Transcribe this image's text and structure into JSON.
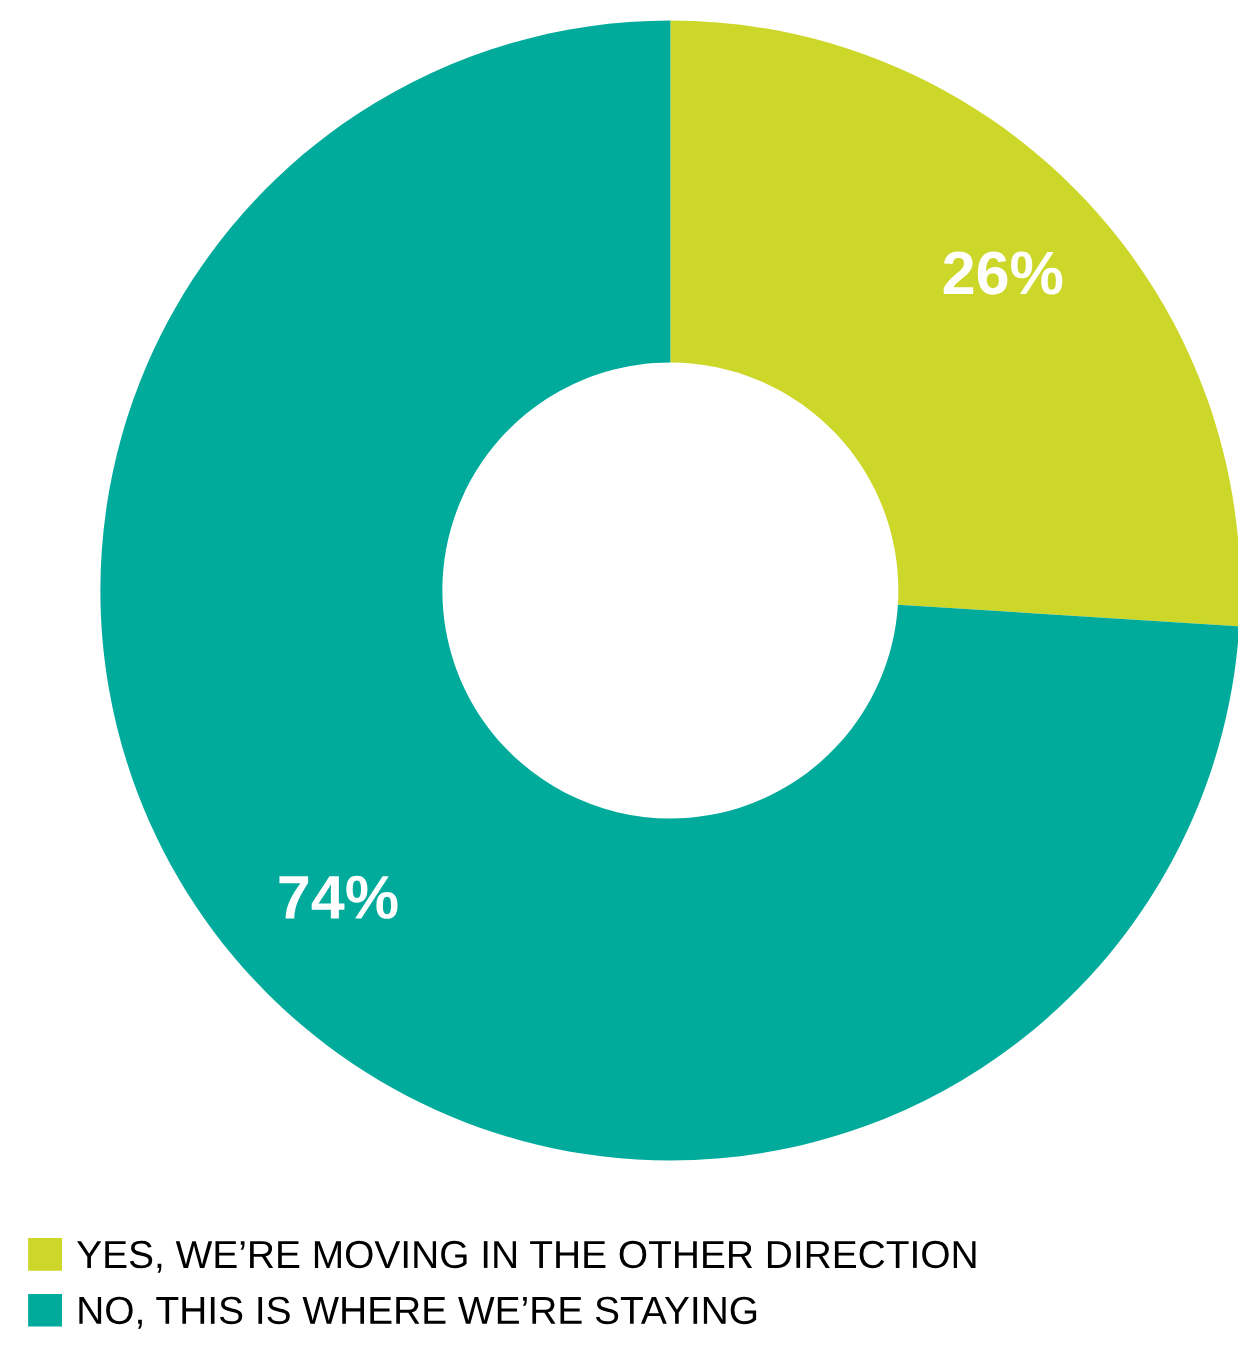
{
  "chart_data": {
    "type": "donut",
    "categories": [
      "YES, WE’RE MOVING IN THE OTHER DIRECTION",
      "NO, THIS IS WHERE WE’RE STAYING"
    ],
    "values": [
      26,
      74
    ],
    "colors": [
      "#cdd72a",
      "#00ab9c"
    ],
    "value_labels": [
      "26%",
      "74%"
    ],
    "legend": "bottom left"
  }
}
